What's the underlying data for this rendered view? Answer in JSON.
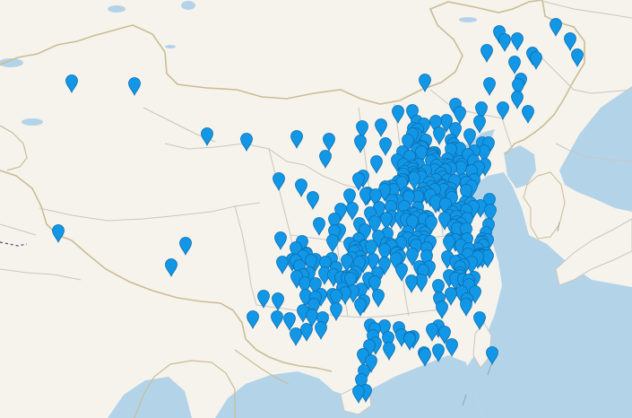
{
  "map": {
    "colors": {
      "land": "#f6f3ec",
      "water": "#b3d3e9",
      "border": "#c9bd95",
      "province_border": "#c9c6c2",
      "marker_fill": "#1296e6",
      "marker_stroke": "#0a6fb0"
    },
    "marker_icon": "map-pin-icon",
    "marker_count": 379
  }
}
